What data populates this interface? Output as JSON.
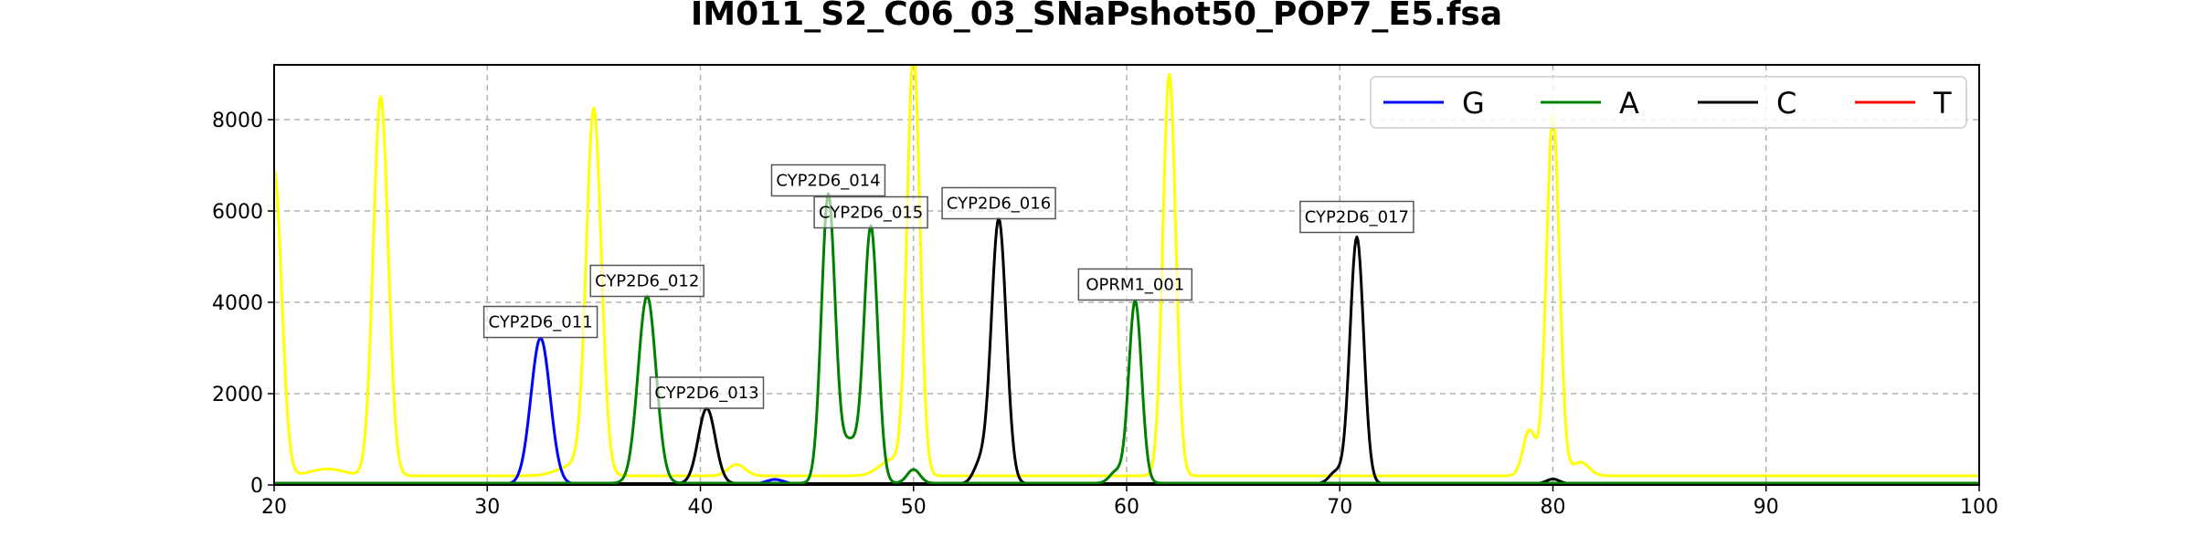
{
  "chart_data": {
    "type": "line",
    "title": "IM011_S2_C06_03_SNaPshot50_POP7_E5.fsa",
    "xlabel": "",
    "ylabel": "",
    "xlim": [
      20,
      100
    ],
    "ylim": [
      0,
      9200
    ],
    "x_ticks": [
      "20",
      "30",
      "40",
      "50",
      "60",
      "70",
      "80",
      "90",
      "100"
    ],
    "y_ticks": [
      "0",
      "2000",
      "4000",
      "6000",
      "8000"
    ],
    "grid": true,
    "legend_position": "top-right",
    "colors": {
      "G": "#0000ff",
      "A": "#008000",
      "C": "#000000",
      "T": "#ff0000",
      "size_standard": "#ffff00"
    },
    "legend": [
      {
        "name": "G",
        "color": "#0000ff"
      },
      {
        "name": "A",
        "color": "#008000"
      },
      {
        "name": "C",
        "color": "#000000"
      },
      {
        "name": "T",
        "color": "#ff0000"
      }
    ],
    "baselines": {
      "yellow": 200,
      "A": 40,
      "G": 20,
      "C": 30,
      "T": 15
    },
    "series": [
      {
        "name": "",
        "color": "#ffff00",
        "peaks": [
          {
            "x": 20.0,
            "height": 6700,
            "width": 0.35
          },
          {
            "x": 22.5,
            "height": 150,
            "width": 0.8
          },
          {
            "x": 25.0,
            "height": 8300,
            "width": 0.35
          },
          {
            "x": 35.0,
            "height": 7900,
            "width": 0.35
          },
          {
            "x": 34.2,
            "height": 250,
            "width": 0.8
          },
          {
            "x": 41.7,
            "height": 250,
            "width": 0.4
          },
          {
            "x": 49.0,
            "height": 350,
            "width": 0.6
          },
          {
            "x": 50.0,
            "height": 9200,
            "width": 0.3
          },
          {
            "x": 62.0,
            "height": 8800,
            "width": 0.3
          },
          {
            "x": 78.9,
            "height": 1000,
            "width": 0.3
          },
          {
            "x": 80.0,
            "height": 7900,
            "width": 0.3
          },
          {
            "x": 81.3,
            "height": 300,
            "width": 0.4
          }
        ]
      },
      {
        "name": "G",
        "color": "#0000ff",
        "peaks": [
          {
            "x": 32.5,
            "height": 3200,
            "width": 0.45
          },
          {
            "x": 43.5,
            "height": 100,
            "width": 0.4
          }
        ]
      },
      {
        "name": "A",
        "color": "#008000",
        "peaks": [
          {
            "x": 37.5,
            "height": 4100,
            "width": 0.42
          },
          {
            "x": 46.0,
            "height": 6300,
            "width": 0.32
          },
          {
            "x": 47.0,
            "height": 900,
            "width": 0.4
          },
          {
            "x": 48.0,
            "height": 5600,
            "width": 0.32
          },
          {
            "x": 50.0,
            "height": 300,
            "width": 0.3
          },
          {
            "x": 59.5,
            "height": 250,
            "width": 0.3
          },
          {
            "x": 60.4,
            "height": 4000,
            "width": 0.3
          }
        ]
      },
      {
        "name": "C",
        "color": "#000000",
        "peaks": [
          {
            "x": 40.3,
            "height": 1650,
            "width": 0.4
          },
          {
            "x": 53.1,
            "height": 400,
            "width": 0.3
          },
          {
            "x": 54.0,
            "height": 5800,
            "width": 0.35
          },
          {
            "x": 69.8,
            "height": 250,
            "width": 0.3
          },
          {
            "x": 70.8,
            "height": 5400,
            "width": 0.32
          },
          {
            "x": 80.0,
            "height": 100,
            "width": 0.3
          }
        ]
      },
      {
        "name": "T",
        "color": "#ff0000",
        "peaks": []
      }
    ],
    "annotations": [
      {
        "text": "CYP2D6_011",
        "x": 32.5,
        "y": 3230
      },
      {
        "text": "CYP2D6_012",
        "x": 37.5,
        "y": 4130
      },
      {
        "text": "CYP2D6_013",
        "x": 40.3,
        "y": 1680
      },
      {
        "text": "CYP2D6_014",
        "x": 46.0,
        "y": 6330
      },
      {
        "text": "CYP2D6_015",
        "x": 48.0,
        "y": 5630
      },
      {
        "text": "CYP2D6_016",
        "x": 54.0,
        "y": 5830
      },
      {
        "text": "OPRM1_001",
        "x": 60.4,
        "y": 4050
      },
      {
        "text": "CYP2D6_017",
        "x": 70.8,
        "y": 5530
      }
    ]
  }
}
